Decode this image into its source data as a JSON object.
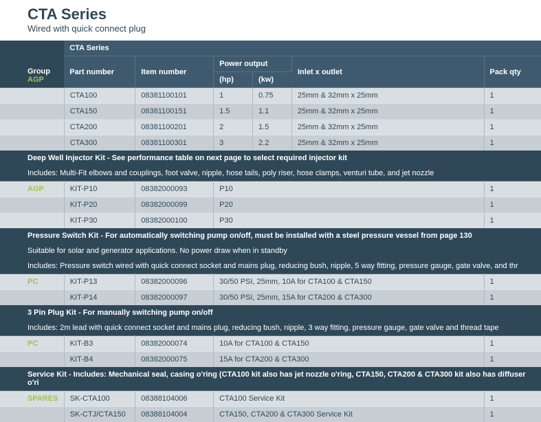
{
  "page": {
    "title": "CTA Series",
    "subtitle": "Wired with quick connect plug"
  },
  "headers": {
    "series_title": "CTA Series",
    "group": "Group",
    "group_code": "AGP",
    "part_number": "Part number",
    "item_number": "Item number",
    "power_output": "Power output",
    "hp": "(hp)",
    "kw": "(kw)",
    "inlet": "Inlet x outlet",
    "pack_qty": "Pack qty"
  },
  "cta_rows": [
    {
      "part": "CTA100",
      "item": "08381100101",
      "hp": "1",
      "kw": "0.75",
      "inlet": "25mm & 32mm x 25mm",
      "pack": "1"
    },
    {
      "part": "CTA150",
      "item": "08381100151",
      "hp": "1.5",
      "kw": "1.1",
      "inlet": "25mm & 32mm x 25mm",
      "pack": "1"
    },
    {
      "part": "CTA200",
      "item": "08381100201",
      "hp": "2",
      "kw": "1.5",
      "inlet": "25mm & 32mm x 25mm",
      "pack": "1"
    },
    {
      "part": "CTA300",
      "item": "08381100301",
      "hp": "3",
      "kw": "2.2",
      "inlet": "25mm & 32mm x 25mm",
      "pack": "1"
    }
  ],
  "deepwell": {
    "title": "Deep Well Injector Kit - See performance table on next page to select required injector kit",
    "includes": "Includes: Multi-Fit elbows and couplings, foot valve, nipple, hose tails, poly riser, hose clamps, venturi tube, and jet nozzle",
    "group": "AGP",
    "rows": [
      {
        "part": "KIT-P10",
        "item": "08382000093",
        "desc": "P10",
        "pack": "1"
      },
      {
        "part": "KIT-P20",
        "item": "08382000099",
        "desc": "P20",
        "pack": "1"
      },
      {
        "part": "KIT-P30",
        "item": "08382000100",
        "desc": "P30",
        "pack": "1"
      }
    ]
  },
  "pressure": {
    "title": "Pressure Switch Kit - For automatically switching pump on/off, must be installed with a steel pressure vessel from page 130",
    "sub1": "Suitable for solar and generator applications. No power draw when in standby",
    "sub2": "Includes: Pressure switch wired with quick connect socket and mains plug, reducing bush, nipple, 5 way fitting, pressure gauge, gate valve, and thr",
    "group": "PC",
    "rows": [
      {
        "part": "KIT-P13",
        "item": "08382000096",
        "desc": "30/50 PSI, 25mm, 10A for CTA100 & CTA150",
        "pack": "1"
      },
      {
        "part": "KIT-P14",
        "item": "08382000097",
        "desc": "30/50 PSI, 25mm, 15A for CTA200 & CTA300",
        "pack": "1"
      }
    ]
  },
  "plug": {
    "title": "3 Pin Plug Kit - For manually switching pump on/off",
    "includes": "Includes: 2m lead with quick connect socket and mains plug, reducing bush, nipple, 3 way fitting, pressure gauge, gate valve and thread tape",
    "group": "PC",
    "rows": [
      {
        "part": "KIT-B3",
        "item": "08382000074",
        "desc": "10A for CTA100 & CTA150",
        "pack": "1"
      },
      {
        "part": "KIT-B4",
        "item": "08382000075",
        "desc": "15A for CTA200 & CTA300",
        "pack": "1"
      }
    ]
  },
  "service": {
    "title": "Service Kit - Includes: Mechanical seal, casing o'ring (CTA100 kit also has jet nozzle o'ring, CTA150, CTA200 & CTA300 kit also has diffuser o'ri",
    "group": "SPARES",
    "rows": [
      {
        "part": "SK-CTA100",
        "item": "08388104006",
        "desc": "CTA100 Service Kit",
        "pack": "1"
      },
      {
        "part": "SK-CTJ/CTA150",
        "item": "08388104004",
        "desc": "CTA150, CTA200 & CTA300 Service Kit",
        "pack": "1"
      }
    ]
  }
}
